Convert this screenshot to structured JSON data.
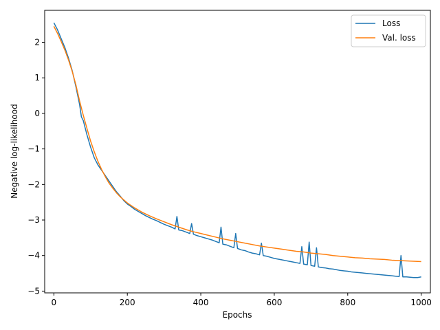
{
  "chart_data": {
    "type": "line",
    "title": "",
    "xlabel": "Epochs",
    "ylabel": "Negative log-likelihood",
    "xlim": [
      -25,
      1025
    ],
    "ylim": [
      -5.05,
      2.9
    ],
    "xticks": [
      0,
      200,
      400,
      600,
      800,
      1000
    ],
    "xtick_labels": [
      "0",
      "200",
      "400",
      "600",
      "800",
      "1000"
    ],
    "yticks": [
      -5,
      -4,
      -3,
      -2,
      -1,
      0,
      1,
      2
    ],
    "ytick_labels": [
      "−5",
      "−4",
      "−3",
      "−2",
      "−1",
      "0",
      "1",
      "2"
    ],
    "grid": false,
    "legend_position": "top-right",
    "series": [
      {
        "name": "Loss",
        "color": "#1f77b4",
        "x": [
          0,
          10,
          20,
          30,
          40,
          50,
          60,
          70,
          75,
          80,
          90,
          100,
          110,
          120,
          130,
          140,
          150,
          160,
          170,
          180,
          190,
          200,
          210,
          220,
          230,
          240,
          250,
          260,
          270,
          280,
          290,
          300,
          310,
          320,
          330,
          335,
          340,
          350,
          360,
          370,
          375,
          380,
          390,
          400,
          410,
          420,
          430,
          440,
          450,
          455,
          460,
          470,
          480,
          490,
          495,
          500,
          510,
          520,
          530,
          540,
          550,
          560,
          565,
          570,
          580,
          590,
          600,
          610,
          620,
          630,
          640,
          650,
          660,
          670,
          675,
          680,
          690,
          695,
          700,
          710,
          715,
          720,
          730,
          740,
          750,
          760,
          770,
          780,
          790,
          800,
          810,
          820,
          830,
          840,
          850,
          860,
          870,
          880,
          890,
          900,
          910,
          920,
          930,
          940,
          945,
          950,
          960,
          970,
          980,
          990,
          1000
        ],
        "y": [
          2.55,
          2.35,
          2.1,
          1.85,
          1.55,
          1.2,
          0.75,
          0.25,
          -0.1,
          -0.2,
          -0.6,
          -0.95,
          -1.25,
          -1.45,
          -1.6,
          -1.75,
          -1.9,
          -2.05,
          -2.2,
          -2.32,
          -2.45,
          -2.55,
          -2.62,
          -2.7,
          -2.76,
          -2.82,
          -2.88,
          -2.93,
          -2.98,
          -3.02,
          -3.07,
          -3.12,
          -3.16,
          -3.2,
          -3.25,
          -2.9,
          -3.28,
          -3.3,
          -3.34,
          -3.38,
          -3.1,
          -3.4,
          -3.44,
          -3.47,
          -3.5,
          -3.53,
          -3.56,
          -3.6,
          -3.64,
          -3.2,
          -3.68,
          -3.7,
          -3.74,
          -3.78,
          -3.38,
          -3.8,
          -3.84,
          -3.86,
          -3.9,
          -3.93,
          -3.95,
          -3.98,
          -3.65,
          -4.0,
          -4.02,
          -4.05,
          -4.08,
          -4.1,
          -4.12,
          -4.14,
          -4.16,
          -4.18,
          -4.2,
          -4.22,
          -3.75,
          -4.24,
          -4.26,
          -3.62,
          -4.28,
          -4.3,
          -3.78,
          -4.32,
          -4.34,
          -4.35,
          -4.37,
          -4.38,
          -4.4,
          -4.42,
          -4.43,
          -4.44,
          -4.46,
          -4.47,
          -4.48,
          -4.49,
          -4.5,
          -4.51,
          -4.52,
          -4.53,
          -4.54,
          -4.55,
          -4.56,
          -4.57,
          -4.58,
          -4.59,
          -4.0,
          -4.6,
          -4.6,
          -4.61,
          -4.62,
          -4.62,
          -4.6
        ]
      },
      {
        "name": "Val. loss",
        "color": "#ff7f0e",
        "x": [
          0,
          10,
          20,
          30,
          40,
          50,
          60,
          70,
          80,
          90,
          100,
          110,
          120,
          130,
          140,
          150,
          160,
          170,
          180,
          190,
          200,
          220,
          240,
          260,
          280,
          300,
          320,
          340,
          360,
          380,
          400,
          420,
          440,
          460,
          480,
          500,
          520,
          540,
          560,
          580,
          600,
          620,
          640,
          660,
          680,
          700,
          720,
          740,
          760,
          780,
          800,
          820,
          840,
          860,
          880,
          900,
          920,
          940,
          960,
          980,
          1000
        ],
        "y": [
          2.45,
          2.25,
          2.02,
          1.78,
          1.5,
          1.18,
          0.8,
          0.35,
          -0.05,
          -0.42,
          -0.78,
          -1.08,
          -1.35,
          -1.58,
          -1.78,
          -1.96,
          -2.1,
          -2.23,
          -2.34,
          -2.43,
          -2.52,
          -2.66,
          -2.78,
          -2.88,
          -2.97,
          -3.05,
          -3.13,
          -3.2,
          -3.27,
          -3.33,
          -3.38,
          -3.43,
          -3.48,
          -3.53,
          -3.57,
          -3.61,
          -3.65,
          -3.69,
          -3.73,
          -3.76,
          -3.79,
          -3.82,
          -3.85,
          -3.88,
          -3.9,
          -3.93,
          -3.95,
          -3.97,
          -4.0,
          -4.02,
          -4.04,
          -4.06,
          -4.07,
          -4.09,
          -4.1,
          -4.11,
          -4.13,
          -4.14,
          -4.15,
          -4.16,
          -4.17
        ]
      }
    ]
  }
}
